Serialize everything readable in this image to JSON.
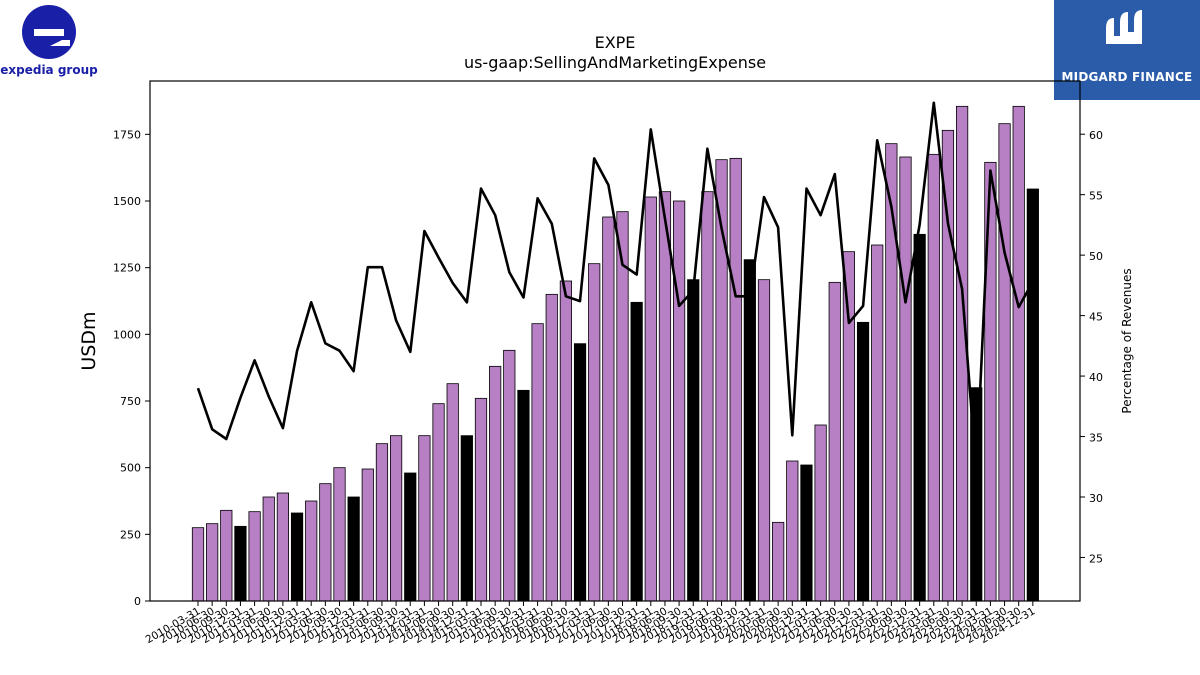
{
  "branding": {
    "left_logo_text": "expedia group",
    "right_logo_text": "MIDGARD FINANCE",
    "left_logo_color": "#1a1fa8",
    "right_logo_bg": "#2a5caa"
  },
  "chart_data": {
    "type": "bar",
    "title": "EXPE",
    "subtitle": "us-gaap:SellingAndMarketingExpense",
    "ylabel": "USDm",
    "y2label": "Percentage of Revenues",
    "ylim": [
      0,
      1950
    ],
    "y2lim": [
      21.4,
      64.4
    ],
    "yticks": [
      0,
      250,
      500,
      750,
      1000,
      1250,
      1500,
      1750
    ],
    "y2ticks": [
      25,
      30,
      35,
      40,
      45,
      50,
      55,
      60
    ],
    "colors": {
      "quarter_bar": "#b77fc4",
      "annual_bar": "#000000",
      "line": "#000000"
    },
    "categories": [
      "2010-03-31",
      "2010-06-30",
      "2010-09-30",
      "2010-12-31",
      "2011-03-31",
      "2011-06-30",
      "2011-09-30",
      "2011-12-31",
      "2012-03-31",
      "2012-06-30",
      "2012-09-30",
      "2012-12-31",
      "2013-03-31",
      "2013-06-30",
      "2013-09-30",
      "2013-12-31",
      "2014-03-31",
      "2014-06-30",
      "2014-09-30",
      "2014-12-31",
      "2015-03-31",
      "2015-06-30",
      "2015-09-30",
      "2015-12-31",
      "2016-03-31",
      "2016-06-30",
      "2016-09-30",
      "2016-12-31",
      "2017-03-31",
      "2017-06-30",
      "2017-09-30",
      "2017-12-31",
      "2018-03-31",
      "2018-06-30",
      "2018-09-30",
      "2018-12-31",
      "2019-03-31",
      "2019-06-30",
      "2019-09-30",
      "2019-12-31",
      "2020-03-31",
      "2020-06-30",
      "2020-09-30",
      "2020-12-31",
      "2021-03-31",
      "2021-06-30",
      "2021-09-30",
      "2021-12-31",
      "2022-03-31",
      "2022-06-30",
      "2022-09-30",
      "2022-12-31",
      "2023-03-31",
      "2023-06-30",
      "2023-09-30",
      "2023-12-31",
      "2024-03-31",
      "2024-06-30",
      "2024-09-30",
      "2024-12-31"
    ],
    "series": [
      {
        "name": "Selling and marketing expense (USDm)",
        "values": [
          275,
          290,
          340,
          280,
          335,
          390,
          405,
          330,
          375,
          440,
          500,
          390,
          495,
          590,
          620,
          480,
          620,
          740,
          815,
          620,
          760,
          880,
          940,
          790,
          1040,
          1150,
          1200,
          965,
          1265,
          1440,
          1460,
          1120,
          1515,
          1535,
          1500,
          1205,
          1535,
          1655,
          1660,
          1280,
          1205,
          295,
          525,
          510,
          660,
          1195,
          1310,
          1045,
          1335,
          1715,
          1665,
          1375,
          1675,
          1765,
          1855,
          800,
          1645,
          1790,
          1855,
          1545
        ],
        "annual": [
          false,
          false,
          false,
          true,
          false,
          false,
          false,
          true,
          false,
          false,
          false,
          true,
          false,
          false,
          false,
          true,
          false,
          false,
          false,
          true,
          false,
          false,
          false,
          true,
          false,
          false,
          false,
          true,
          false,
          false,
          false,
          true,
          false,
          false,
          false,
          true,
          false,
          false,
          false,
          true,
          false,
          false,
          false,
          true,
          false,
          false,
          false,
          true,
          false,
          false,
          false,
          true,
          false,
          false,
          false,
          true,
          false,
          false,
          false,
          true
        ]
      },
      {
        "name": "Percentage of Revenues",
        "axis": "right",
        "values": [
          39.0,
          35.6,
          34.8,
          38.2,
          41.3,
          38.3,
          35.7,
          42.1,
          46.1,
          42.7,
          42.1,
          40.4,
          49.0,
          49.0,
          44.6,
          42.0,
          52.0,
          49.8,
          47.7,
          46.1,
          55.5,
          53.3,
          48.6,
          46.5,
          54.7,
          52.6,
          46.6,
          46.2,
          58.0,
          55.8,
          49.2,
          48.4,
          60.4,
          53.0,
          45.8,
          47.1,
          58.8,
          52.2,
          46.6,
          46.6,
          54.8,
          52.3,
          35.1,
          55.5,
          53.3,
          56.7,
          44.4,
          45.8,
          59.5,
          54.0,
          46.1,
          52.5,
          62.6,
          52.6,
          47.2,
          32.0,
          57.0,
          50.2,
          45.7,
          47.8
        ]
      }
    ]
  }
}
